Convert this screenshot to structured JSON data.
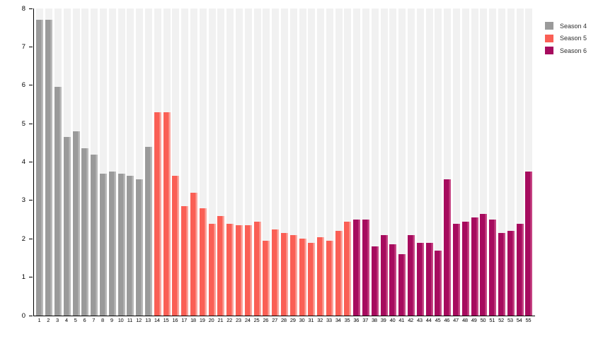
{
  "chart_data": {
    "type": "bar",
    "title": "",
    "xlabel": "",
    "ylabel": "",
    "ylim": [
      0,
      8
    ],
    "y_ticks": [
      "0",
      "1",
      "2",
      "3",
      "4",
      "5",
      "6",
      "7",
      "8"
    ],
    "categories": [
      "1",
      "2",
      "3",
      "4",
      "5",
      "6",
      "7",
      "8",
      "9",
      "10",
      "11",
      "12",
      "13",
      "14",
      "15",
      "16",
      "17",
      "18",
      "19",
      "20",
      "21",
      "22",
      "23",
      "24",
      "25",
      "26",
      "27",
      "28",
      "29",
      "30",
      "31",
      "32",
      "33",
      "34",
      "35",
      "36",
      "37",
      "38",
      "39",
      "40",
      "41",
      "42",
      "43",
      "44",
      "45",
      "46",
      "47",
      "48",
      "49",
      "50",
      "51",
      "52",
      "53",
      "54",
      "55"
    ],
    "grid": "off",
    "background_bands": "vertical light-gray band behind every bar",
    "band_color": "#f1f1f1",
    "axis_color": "#000000",
    "legend_position": "top-right",
    "series": [
      {
        "name": "Season 4",
        "color": "#9a9a9a",
        "edge_color": "#b9b9b9",
        "x_start": 1,
        "values": [
          7.7,
          7.7,
          5.95,
          4.65,
          4.8,
          4.35,
          4.2,
          3.7,
          3.75,
          3.7,
          3.65,
          3.55,
          4.4
        ]
      },
      {
        "name": "Season 5",
        "color": "#fa5f55",
        "edge_color": "#fba49c",
        "x_start": 14,
        "values": [
          5.3,
          5.3,
          3.65,
          2.85,
          3.2,
          2.8,
          2.4,
          2.6,
          2.4,
          2.35,
          2.35,
          2.45,
          1.95,
          2.25,
          2.15,
          2.1,
          2.0,
          1.9,
          2.05,
          1.95,
          2.2,
          2.45
        ]
      },
      {
        "name": "Season 6",
        "color": "#a60b5e",
        "edge_color": "#c54483",
        "x_start": 36,
        "values": [
          2.5,
          2.5,
          1.8,
          2.1,
          1.85,
          1.6,
          2.1,
          1.9,
          1.9,
          1.7,
          3.55,
          2.4,
          2.45,
          2.55,
          2.65,
          2.5,
          2.15,
          2.2,
          2.4,
          3.75
        ]
      }
    ]
  },
  "legend": {
    "items": [
      {
        "label": "Season 4",
        "color": "#9a9a9a"
      },
      {
        "label": "Season 5",
        "color": "#fa5f55"
      },
      {
        "label": "Season 6",
        "color": "#a60b5e"
      }
    ]
  }
}
